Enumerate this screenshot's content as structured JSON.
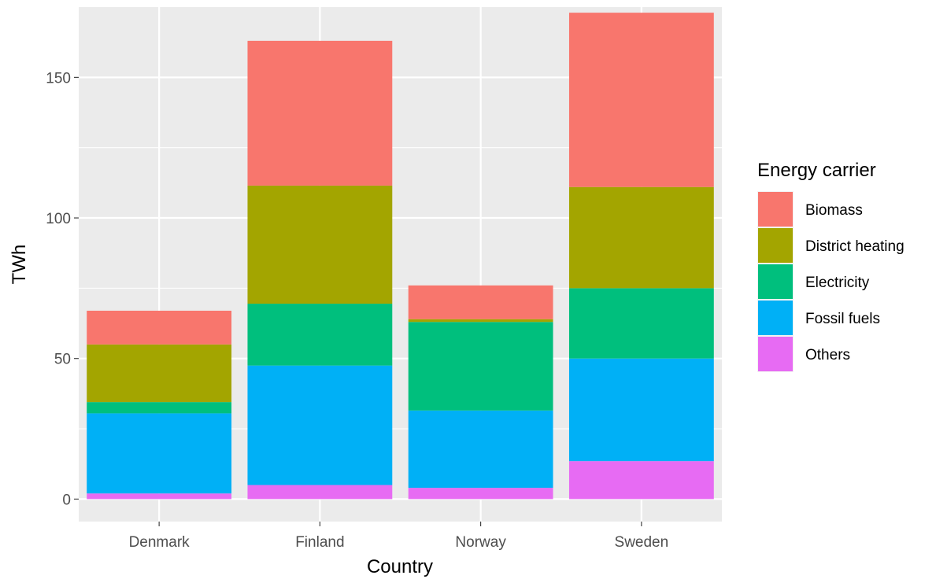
{
  "chart_data": {
    "type": "bar",
    "stacked": true,
    "title": "",
    "xlabel": "Country",
    "ylabel": "TWh",
    "ylim": [
      -8,
      175
    ],
    "yticks": [
      0,
      50,
      100,
      150
    ],
    "grid": true,
    "legend": {
      "title": "Energy carrier",
      "position": "right"
    },
    "categories": [
      "Denmark",
      "Finland",
      "Norway",
      "Sweden"
    ],
    "series": [
      {
        "name": "Others",
        "color": "#E76BF3",
        "values": [
          2,
          5,
          4,
          13.5
        ]
      },
      {
        "name": "Fossil fuels",
        "color": "#00B0F6",
        "values": [
          28.5,
          42.5,
          27.5,
          36.5
        ]
      },
      {
        "name": "Electricity",
        "color": "#00BF7D",
        "values": [
          4,
          22,
          31.5,
          25
        ]
      },
      {
        "name": "District heating",
        "color": "#A3A500",
        "values": [
          20.5,
          42,
          1,
          36
        ]
      },
      {
        "name": "Biomass",
        "color": "#F8766D",
        "values": [
          12,
          51.5,
          12,
          62
        ]
      }
    ],
    "legend_order": [
      "Biomass",
      "District heating",
      "Electricity",
      "Fossil fuels",
      "Others"
    ]
  }
}
